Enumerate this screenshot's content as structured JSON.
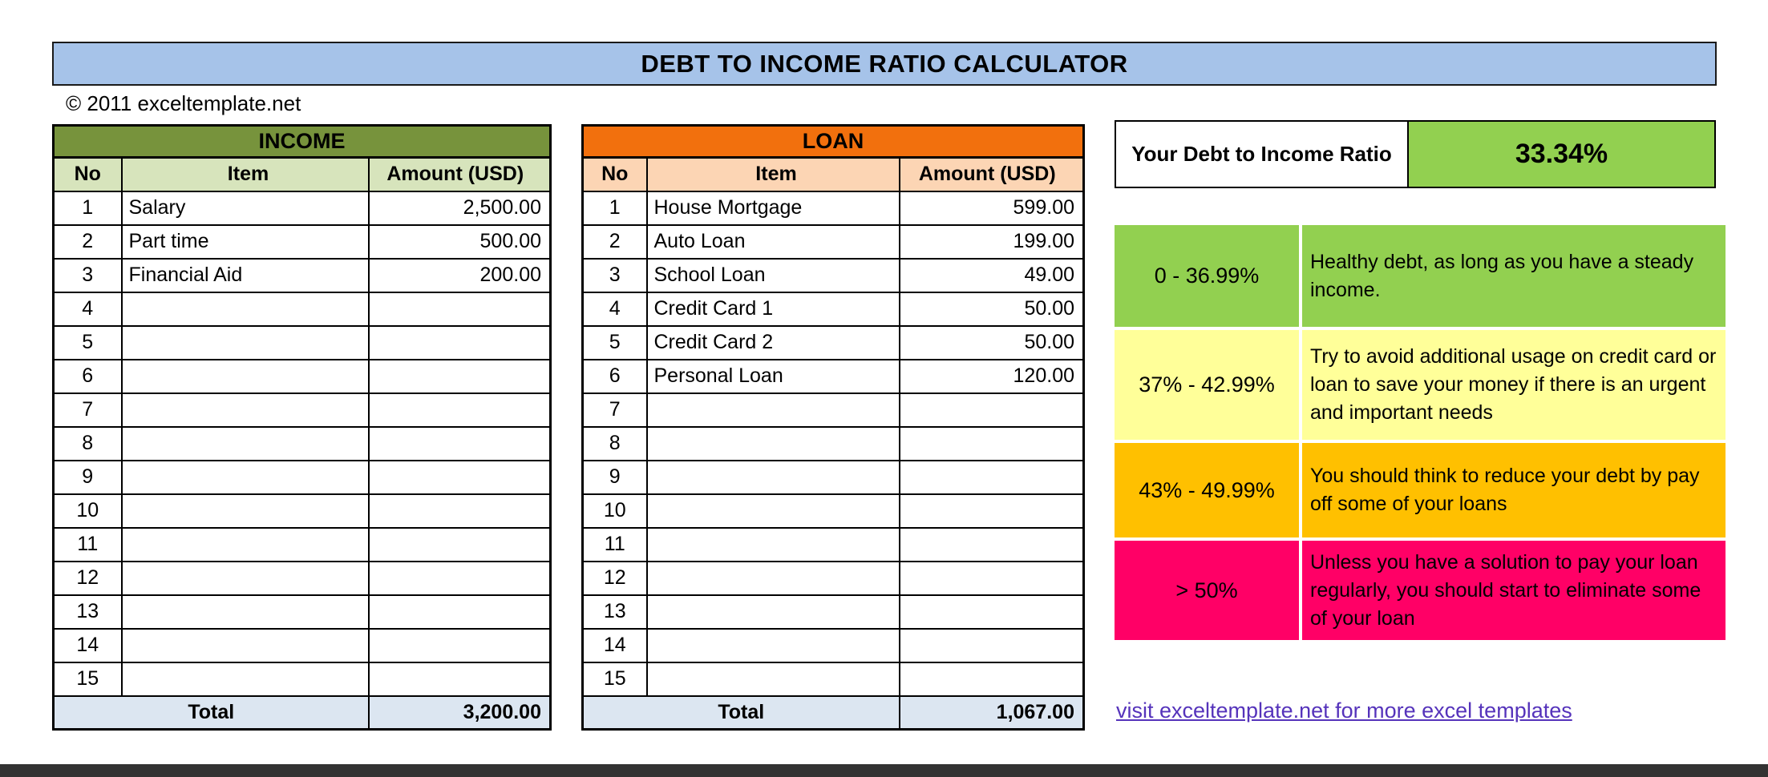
{
  "title": "DEBT TO INCOME RATIO CALCULATOR",
  "copyright": "© 2011 exceltemplate.net",
  "income": {
    "header": "INCOME",
    "columns": [
      "No",
      "Item",
      "Amount (USD)"
    ],
    "rows": [
      {
        "no": "1",
        "item": "Salary",
        "amount": "2,500.00"
      },
      {
        "no": "2",
        "item": "Part time",
        "amount": "500.00"
      },
      {
        "no": "3",
        "item": "Financial Aid",
        "amount": "200.00"
      },
      {
        "no": "4",
        "item": "",
        "amount": ""
      },
      {
        "no": "5",
        "item": "",
        "amount": ""
      },
      {
        "no": "6",
        "item": "",
        "amount": ""
      },
      {
        "no": "7",
        "item": "",
        "amount": ""
      },
      {
        "no": "8",
        "item": "",
        "amount": ""
      },
      {
        "no": "9",
        "item": "",
        "amount": ""
      },
      {
        "no": "10",
        "item": "",
        "amount": ""
      },
      {
        "no": "11",
        "item": "",
        "amount": ""
      },
      {
        "no": "12",
        "item": "",
        "amount": ""
      },
      {
        "no": "13",
        "item": "",
        "amount": ""
      },
      {
        "no": "14",
        "item": "",
        "amount": ""
      },
      {
        "no": "15",
        "item": "",
        "amount": ""
      }
    ],
    "total_label": "Total",
    "total_value": "3,200.00"
  },
  "loan": {
    "header": "LOAN",
    "columns": [
      "No",
      "Item",
      "Amount (USD)"
    ],
    "rows": [
      {
        "no": "1",
        "item": "House Mortgage",
        "amount": "599.00"
      },
      {
        "no": "2",
        "item": "Auto Loan",
        "amount": "199.00"
      },
      {
        "no": "3",
        "item": "School Loan",
        "amount": "49.00"
      },
      {
        "no": "4",
        "item": "Credit Card 1",
        "amount": "50.00"
      },
      {
        "no": "5",
        "item": "Credit Card 2",
        "amount": "50.00"
      },
      {
        "no": "6",
        "item": "Personal Loan",
        "amount": "120.00"
      },
      {
        "no": "7",
        "item": "",
        "amount": ""
      },
      {
        "no": "8",
        "item": "",
        "amount": ""
      },
      {
        "no": "9",
        "item": "",
        "amount": ""
      },
      {
        "no": "10",
        "item": "",
        "amount": ""
      },
      {
        "no": "11",
        "item": "",
        "amount": ""
      },
      {
        "no": "12",
        "item": "",
        "amount": ""
      },
      {
        "no": "13",
        "item": "",
        "amount": ""
      },
      {
        "no": "14",
        "item": "",
        "amount": ""
      },
      {
        "no": "15",
        "item": "",
        "amount": ""
      }
    ],
    "total_label": "Total",
    "total_value": "1,067.00"
  },
  "ratio": {
    "label": "Your Debt to Income Ratio",
    "value": "33.34%"
  },
  "guide": {
    "rows": [
      {
        "range": "0 - 36.99%",
        "description": "Healthy debt, as long as you have a steady income.",
        "bg": "#92D050",
        "text": "#000000"
      },
      {
        "range": "37% - 42.99%",
        "description": "Try to avoid additional usage on credit card or loan to save your money if there is an urgent and important needs",
        "bg": "#FFFF99",
        "text": "#000000"
      },
      {
        "range": "43% - 49.99%",
        "description": "You should think to reduce your debt by pay off some of your loans",
        "bg": "#FFC000",
        "text": "#000000"
      },
      {
        "range": "> 50%",
        "description": "Unless you have a solution to pay your loan regularly, you should start to eliminate some of your loan",
        "bg": "#FF0066",
        "text": "#000000"
      }
    ]
  },
  "footer_link": "visit exceltemplate.net for more excel templates",
  "colors": {
    "title_bg": "#A6C3E9",
    "income_header_bg": "#77933C",
    "income_colhead_bg": "#D7E4BC",
    "loan_header_bg": "#F2700D",
    "loan_colhead_bg": "#FCD5B4",
    "total_bg": "#DCE6F1",
    "ratio_value_bg": "#92D050",
    "link_color": "#5533BB",
    "screen_edge": "#333333"
  }
}
